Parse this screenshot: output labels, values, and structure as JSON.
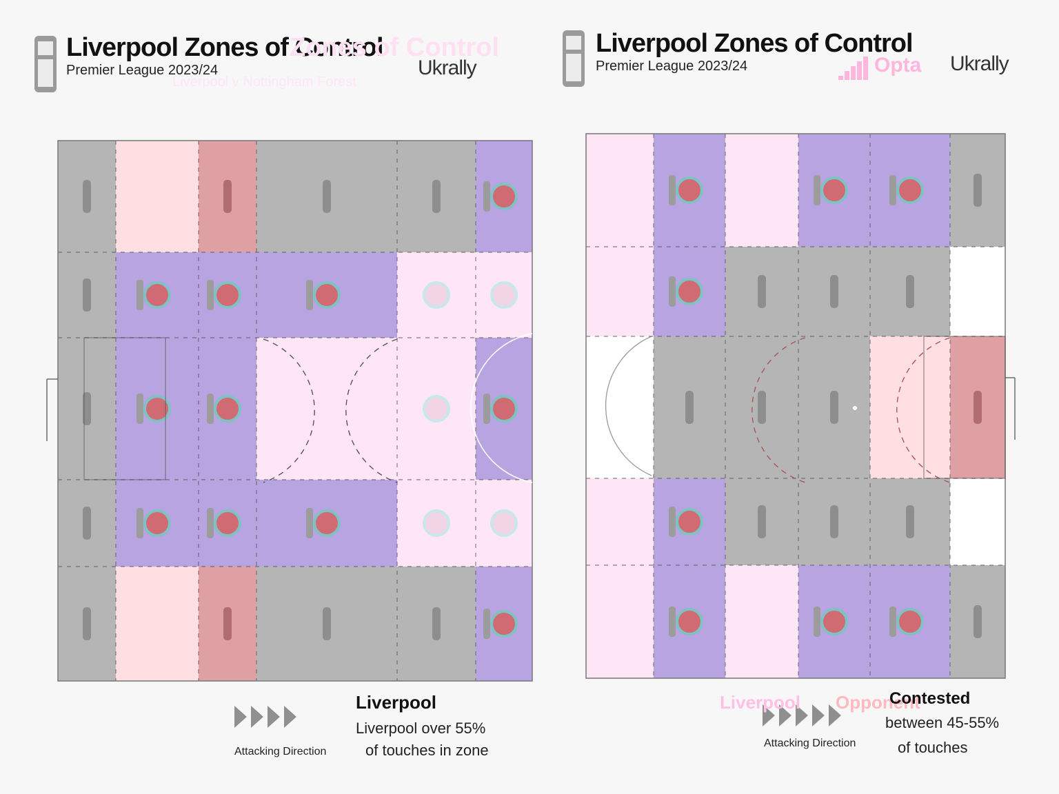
{
  "header": {
    "title": "Liverpool Zones of Control",
    "title_accent": "Zones of Control",
    "subtitle": "Premier League 2023/24",
    "subtitle_accent": "Liverpool v Nottingham Forest",
    "brand": "Ukrally",
    "opta": "Opta"
  },
  "header_right": {
    "title": "Liverpool Zones of Control",
    "subtitle": "Premier League 2023/24",
    "brand": "Ukrally",
    "opta": "Opta"
  },
  "colors": {
    "background": "#f7f7f7",
    "liverpool": "#b8a4e0",
    "opponent": "#dea0a3",
    "contested": "#b5b5b5",
    "light_pink": "#ffe6f6",
    "light_red": "#ffdfe2",
    "white": "#ffffff",
    "line": "#555555"
  },
  "legend": {
    "left": {
      "direction_label": "Attacking Direction",
      "heading": "Liverpool",
      "line1": "Liverpool over 55%",
      "line2": "of touches in zone"
    },
    "right": {
      "team1": "Liverpool",
      "team2": "Opponent",
      "direction_label": "Attacking Direction",
      "heading": "Contested",
      "line1": "between 45-55%",
      "line2": "of touches"
    }
  },
  "chart_data": [
    {
      "type": "heatmap",
      "title": "Liverpool Zones of Control",
      "subtitle": "Premier League 2023/24",
      "rows": 5,
      "columns": 6,
      "categories": [
        "L",
        "O",
        "C",
        "P",
        "R"
      ],
      "zones": [
        [
          "C",
          "R",
          "O",
          "C",
          "C",
          "L"
        ],
        [
          "C",
          "L",
          "L",
          "L",
          "P",
          "P"
        ],
        [
          "C",
          "L",
          "L",
          "P",
          "P",
          "L"
        ],
        [
          "C",
          "L",
          "L",
          "L",
          "P",
          "P"
        ],
        [
          "C",
          "R",
          "O",
          "C",
          "C",
          "L"
        ]
      ]
    },
    {
      "type": "heatmap",
      "title": "Liverpool Zones of Control",
      "subtitle": "Premier League 2023/24",
      "rows": 5,
      "columns": 6,
      "categories": [
        "L",
        "O",
        "C",
        "P",
        "R",
        "W"
      ],
      "zones": [
        [
          "P",
          "L",
          "P",
          "L",
          "L",
          "C"
        ],
        [
          "P",
          "L",
          "C",
          "C",
          "C",
          "W"
        ],
        [
          "W",
          "C",
          "C",
          "C",
          "R",
          "O"
        ],
        [
          "P",
          "L",
          "C",
          "C",
          "C",
          "W"
        ],
        [
          "P",
          "L",
          "P",
          "L",
          "L",
          "C"
        ]
      ]
    }
  ]
}
